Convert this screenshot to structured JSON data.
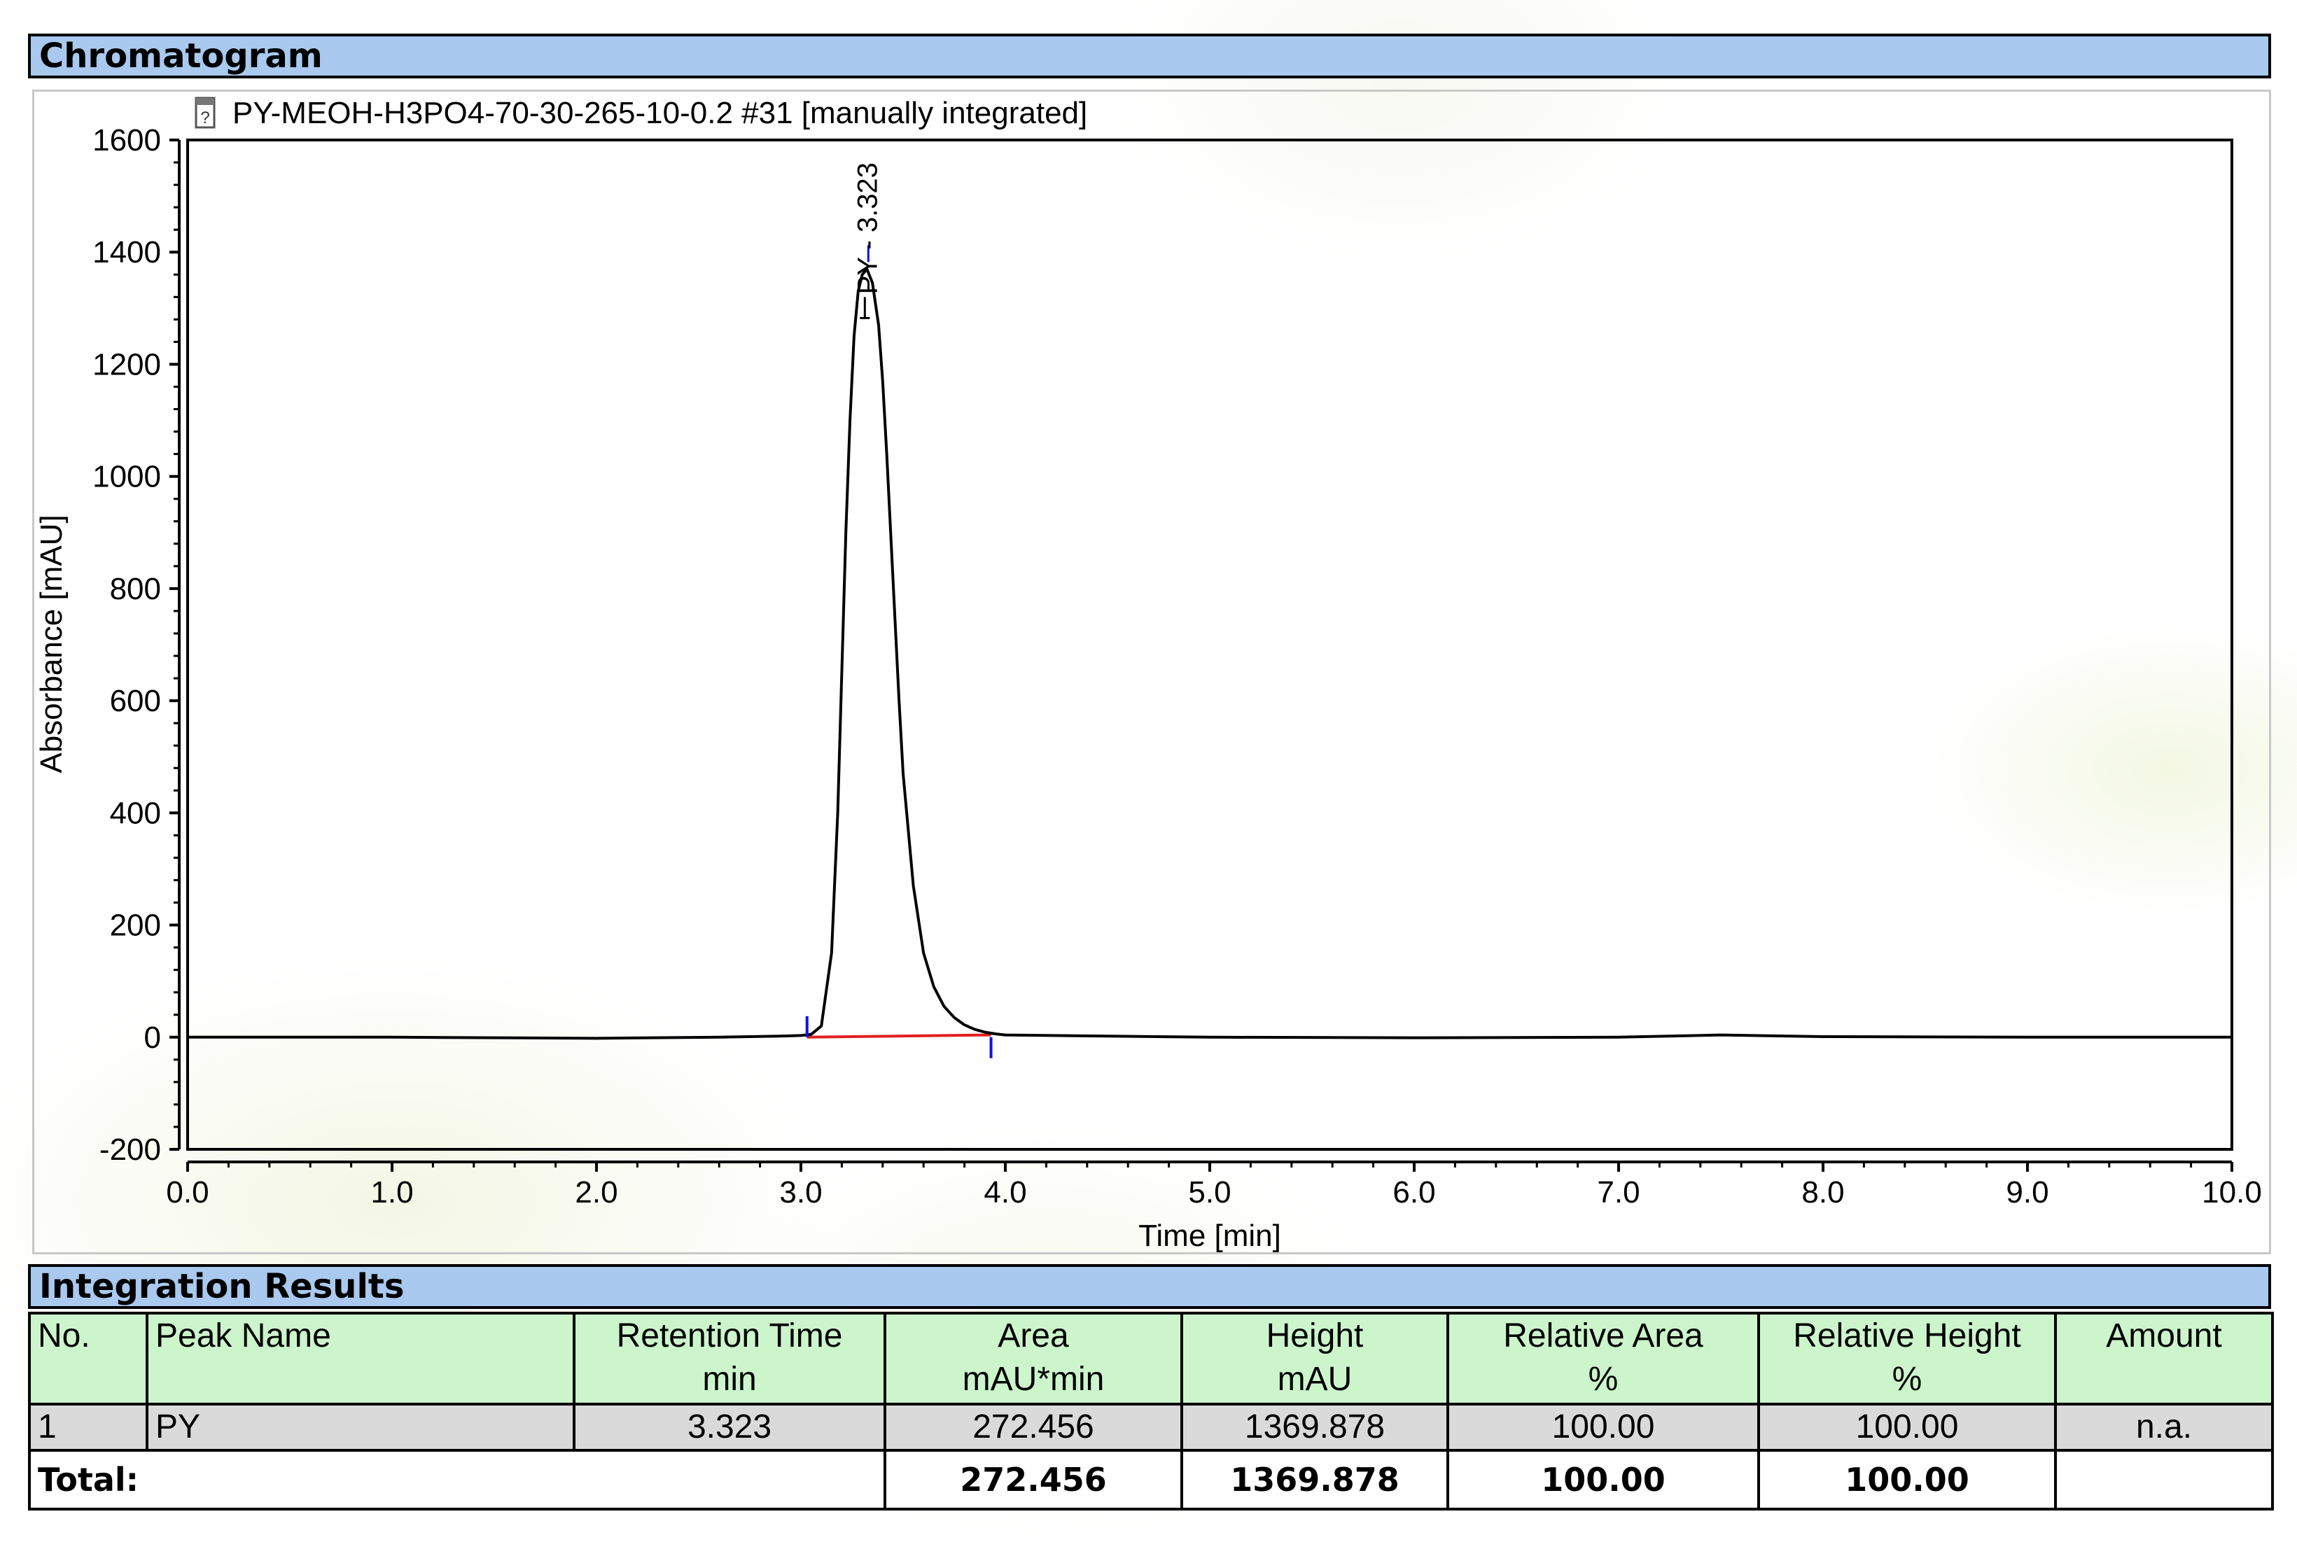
{
  "sections": {
    "chromatogram_title": "Chromatogram",
    "results_title": "Integration Results"
  },
  "chart_data": {
    "type": "line",
    "title": "PY-MEOH-H3PO4-70-30-265-10-0.2 #31 [manually integrated]",
    "xlabel": "Time [min]",
    "ylabel": "Absorbance [mAU]",
    "xlim": [
      0.0,
      10.0
    ],
    "ylim": [
      -200,
      1600
    ],
    "x_ticks": [
      "0.0",
      "1.0",
      "2.0",
      "3.0",
      "4.0",
      "5.0",
      "6.0",
      "7.0",
      "8.0",
      "9.0",
      "10.0"
    ],
    "y_ticks": [
      "-200",
      "0",
      "200",
      "400",
      "600",
      "800",
      "1000",
      "1200",
      "1400",
      "1600"
    ],
    "grid": false,
    "series": [
      {
        "x": [
          0.0,
          1.0,
          2.0,
          2.6,
          2.9,
          3.0,
          3.05,
          3.1,
          3.15,
          3.18,
          3.2,
          3.22,
          3.24,
          3.26,
          3.28,
          3.3,
          3.323,
          3.35,
          3.38,
          3.4,
          3.42,
          3.45,
          3.48,
          3.5,
          3.55,
          3.6,
          3.65,
          3.7,
          3.75,
          3.8,
          3.85,
          3.9,
          3.95,
          4.0,
          4.5,
          5.0,
          6.0,
          7.0,
          7.5,
          8.0,
          9.0,
          10.0
        ],
        "y": [
          0,
          0,
          -2,
          0,
          2,
          3,
          5,
          20,
          150,
          400,
          650,
          900,
          1100,
          1250,
          1330,
          1360,
          1369.878,
          1345,
          1270,
          1170,
          1040,
          820,
          600,
          470,
          270,
          150,
          90,
          55,
          35,
          22,
          14,
          9,
          6,
          4,
          2,
          0,
          -1,
          0,
          4,
          1,
          0,
          0
        ]
      }
    ],
    "peak_label": "PY - 3.323",
    "integration": {
      "start": 3.03,
      "end": 3.93,
      "baseline": [
        [
          3.03,
          0
        ],
        [
          3.93,
          4
        ]
      ]
    }
  },
  "table": {
    "headers": [
      {
        "line1": "No.",
        "line2": ""
      },
      {
        "line1": "Peak Name",
        "line2": ""
      },
      {
        "line1": "Retention Time",
        "line2": "min"
      },
      {
        "line1": "Area",
        "line2": "mAU*min"
      },
      {
        "line1": "Height",
        "line2": "mAU"
      },
      {
        "line1": "Relative Area",
        "line2": "%"
      },
      {
        "line1": "Relative Height",
        "line2": "%"
      },
      {
        "line1": "Amount",
        "line2": ""
      }
    ],
    "rows": [
      {
        "no": "1",
        "name": "PY",
        "rt": "3.323",
        "area": "272.456",
        "height": "1369.878",
        "rel_area": "100.00",
        "rel_height": "100.00",
        "amount": "n.a."
      }
    ],
    "total": {
      "label": "Total:",
      "area": "272.456",
      "height": "1369.878",
      "rel_area": "100.00",
      "rel_height": "100.00"
    }
  }
}
